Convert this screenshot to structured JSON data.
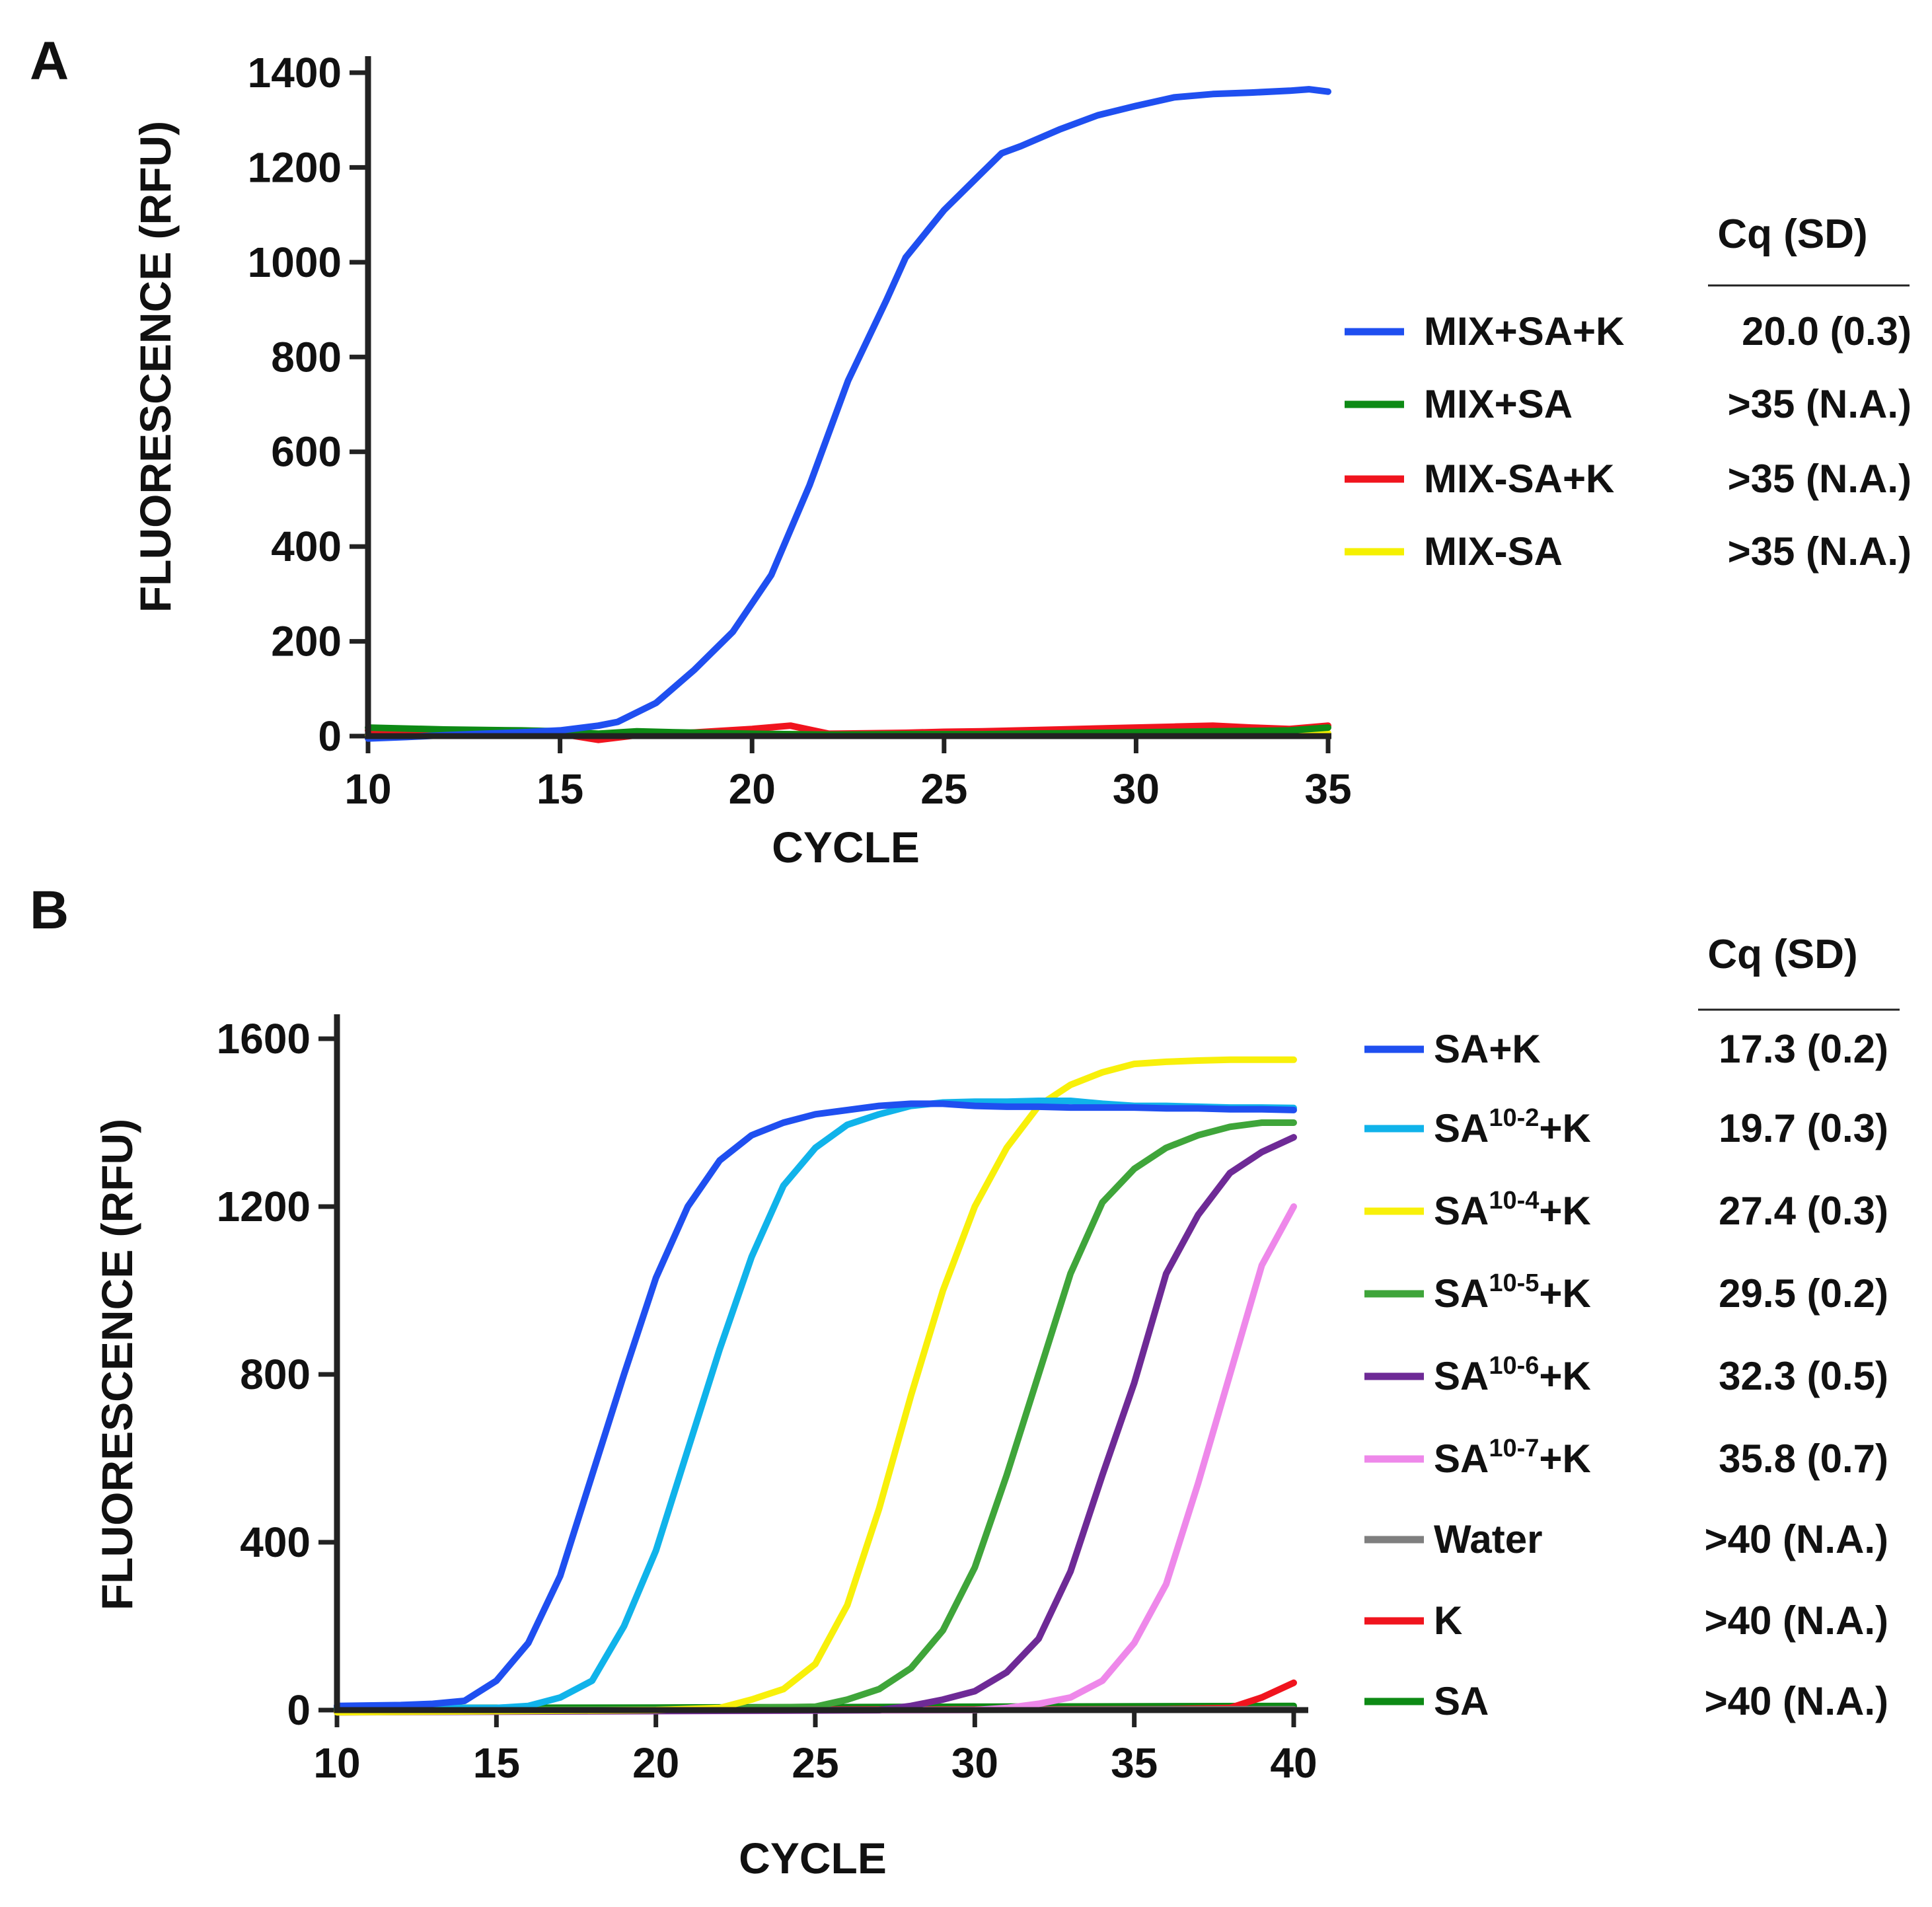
{
  "chart_data": [
    {
      "panel": "A",
      "type": "line",
      "xlabel": "CYCLE",
      "ylabel": "FLUORESCENCE (RFU)",
      "xlim": [
        10,
        35
      ],
      "ylim": [
        0,
        1400
      ],
      "xticks": [
        10,
        15,
        20,
        25,
        30,
        35
      ],
      "yticks": [
        0,
        200,
        400,
        600,
        800,
        1000,
        1200,
        1400
      ],
      "legend_header": "Cq (SD)",
      "series": [
        {
          "name": "MIX+SA+K",
          "cq": "20.0 (0.3)",
          "color": "#1f4ff0",
          "x": [
            10,
            11,
            12,
            13,
            14,
            15,
            16,
            16.5,
            17.5,
            18.5,
            19.5,
            20.5,
            21.5,
            22.5,
            23.5,
            24,
            25,
            26,
            26.5,
            27,
            28,
            29,
            30,
            31,
            32,
            33,
            34,
            34.5,
            35
          ],
          "y": [
            -5,
            -2,
            2,
            5,
            8,
            12,
            22,
            30,
            70,
            140,
            220,
            340,
            530,
            750,
            920,
            1010,
            1110,
            1190,
            1230,
            1245,
            1280,
            1310,
            1330,
            1348,
            1355,
            1358,
            1362,
            1365,
            1360
          ]
        },
        {
          "name": "MIX+SA",
          "cq": ">35 (N.A.)",
          "color": "#0d8a15",
          "x": [
            10,
            12,
            14,
            15,
            16,
            17,
            18,
            20,
            22,
            24,
            26,
            28,
            30,
            32,
            34,
            35
          ],
          "y": [
            18,
            14,
            12,
            10,
            5,
            10,
            8,
            5,
            3,
            4,
            4,
            6,
            8,
            10,
            12,
            18
          ]
        },
        {
          "name": "MIX-SA+K",
          "cq": ">35 (N.A.)",
          "color": "#f0141e",
          "x": [
            10,
            11,
            12,
            13,
            14,
            15,
            16,
            17,
            18,
            19,
            20,
            21,
            22,
            23,
            24,
            25,
            26,
            27,
            28,
            29,
            30,
            31,
            32,
            33,
            34,
            35
          ],
          "y": [
            12,
            12,
            12,
            11,
            10,
            5,
            -8,
            2,
            5,
            10,
            15,
            22,
            5,
            6,
            7,
            9,
            10,
            12,
            14,
            16,
            18,
            20,
            22,
            18,
            15,
            22
          ]
        },
        {
          "name": "MIX-SA",
          "cq": ">35 (N.A.)",
          "color": "#f5f000",
          "x": [
            10,
            15,
            20,
            25,
            30,
            35
          ],
          "y": [
            2,
            3,
            4,
            4,
            5,
            6
          ]
        }
      ]
    },
    {
      "panel": "B",
      "type": "line",
      "xlabel": "CYCLE",
      "ylabel": "FLUORESCENCE (RFU)",
      "xlim": [
        10,
        40
      ],
      "ylim": [
        0,
        1600
      ],
      "xticks": [
        10,
        15,
        20,
        25,
        30,
        35,
        40
      ],
      "yticks": [
        0,
        400,
        800,
        1200,
        1600
      ],
      "legend_header": "Cq (SD)",
      "series": [
        {
          "name": "SA+K",
          "label_base": "SA",
          "label_sup": "",
          "label_suffix": "+K",
          "cq": "17.3 (0.2)",
          "color": "#1f4ff0",
          "x": [
            10,
            12,
            13,
            14,
            15,
            16,
            17,
            18,
            19,
            20,
            21,
            22,
            23,
            24,
            25,
            26,
            27,
            28,
            29,
            30,
            31,
            32,
            33,
            34,
            35,
            36,
            37,
            38,
            39,
            40
          ],
          "y": [
            10,
            12,
            15,
            22,
            70,
            160,
            320,
            560,
            800,
            1030,
            1200,
            1310,
            1370,
            1400,
            1420,
            1430,
            1440,
            1445,
            1445,
            1440,
            1438,
            1438,
            1436,
            1436,
            1436,
            1434,
            1434,
            1432,
            1432,
            1430
          ]
        },
        {
          "name": "SA10-2+K",
          "label_base": "SA",
          "label_sup": "10-2",
          "label_suffix": "+K",
          "cq": "19.7 (0.3)",
          "color": "#10b3ea",
          "x": [
            10,
            15,
            16,
            17,
            18,
            19,
            20,
            21,
            22,
            23,
            24,
            25,
            26,
            27,
            28,
            29,
            30,
            31,
            32,
            33,
            34,
            35,
            36,
            37,
            38,
            39,
            40
          ],
          "y": [
            5,
            5,
            10,
            30,
            70,
            200,
            380,
            620,
            860,
            1080,
            1250,
            1340,
            1395,
            1420,
            1440,
            1448,
            1450,
            1450,
            1452,
            1452,
            1445,
            1440,
            1440,
            1438,
            1436,
            1436,
            1435
          ]
        },
        {
          "name": "SA10-4+K",
          "label_base": "SA",
          "label_sup": "10-4",
          "label_suffix": "+K",
          "cq": "27.4 (0.3)",
          "color": "#f8f00a",
          "x": [
            10,
            20,
            22,
            23,
            24,
            25,
            26,
            27,
            28,
            29,
            30,
            31,
            32,
            33,
            34,
            35,
            36,
            37,
            38,
            39,
            40
          ],
          "y": [
            -5,
            0,
            5,
            25,
            50,
            110,
            250,
            480,
            750,
            1000,
            1200,
            1340,
            1440,
            1490,
            1520,
            1540,
            1545,
            1548,
            1550,
            1550,
            1550
          ]
        },
        {
          "name": "SA10-5+K",
          "label_base": "SA",
          "label_sup": "10-5",
          "label_suffix": "+K",
          "cq": "29.5 (0.2)",
          "color": "#3fa53a",
          "x": [
            10,
            20,
            25,
            26,
            27,
            28,
            29,
            30,
            31,
            32,
            33,
            34,
            35,
            36,
            37,
            38,
            39,
            40
          ],
          "y": [
            0,
            2,
            8,
            25,
            50,
            100,
            190,
            340,
            560,
            800,
            1040,
            1210,
            1290,
            1340,
            1370,
            1390,
            1400,
            1400
          ]
        },
        {
          "name": "SA10-6+K",
          "label_base": "SA",
          "label_sup": "10-6",
          "label_suffix": "+K",
          "cq": "32.3 (0.5)",
          "color": "#6e2a96",
          "x": [
            10,
            27,
            28,
            29,
            30,
            31,
            32,
            33,
            34,
            35,
            36,
            37,
            38,
            39,
            40
          ],
          "y": [
            -5,
            0,
            10,
            25,
            45,
            90,
            170,
            330,
            560,
            780,
            1040,
            1180,
            1280,
            1330,
            1365
          ]
        },
        {
          "name": "SA10-7+K",
          "label_base": "SA",
          "label_sup": "10-7",
          "label_suffix": "+K",
          "cq": "35.8 (0.7)",
          "color": "#ee88ea",
          "x": [
            10,
            30,
            31,
            32,
            33,
            34,
            35,
            36,
            37,
            38,
            39,
            40
          ],
          "y": [
            -5,
            0,
            5,
            15,
            30,
            70,
            160,
            300,
            540,
            800,
            1060,
            1200
          ]
        },
        {
          "name": "Water",
          "label_base": "Water",
          "label_sup": "",
          "label_suffix": "",
          "cq": ">40 (N.A.)",
          "color": "#7f7f7f",
          "x": [
            10,
            25,
            40
          ],
          "y": [
            0,
            0,
            2
          ]
        },
        {
          "name": "K",
          "label_base": "K",
          "label_sup": "",
          "label_suffix": "",
          "cq": ">40 (N.A.)",
          "color": "#f0141e",
          "x": [
            10,
            36,
            38,
            39,
            40
          ],
          "y": [
            0,
            2,
            5,
            30,
            65
          ]
        },
        {
          "name": "SA",
          "label_base": "SA",
          "label_sup": "",
          "label_suffix": "",
          "cq": ">40 (N.A.)",
          "color": "#0d8a15",
          "x": [
            10,
            20,
            30,
            40
          ],
          "y": [
            5,
            6,
            8,
            10
          ]
        }
      ]
    }
  ]
}
